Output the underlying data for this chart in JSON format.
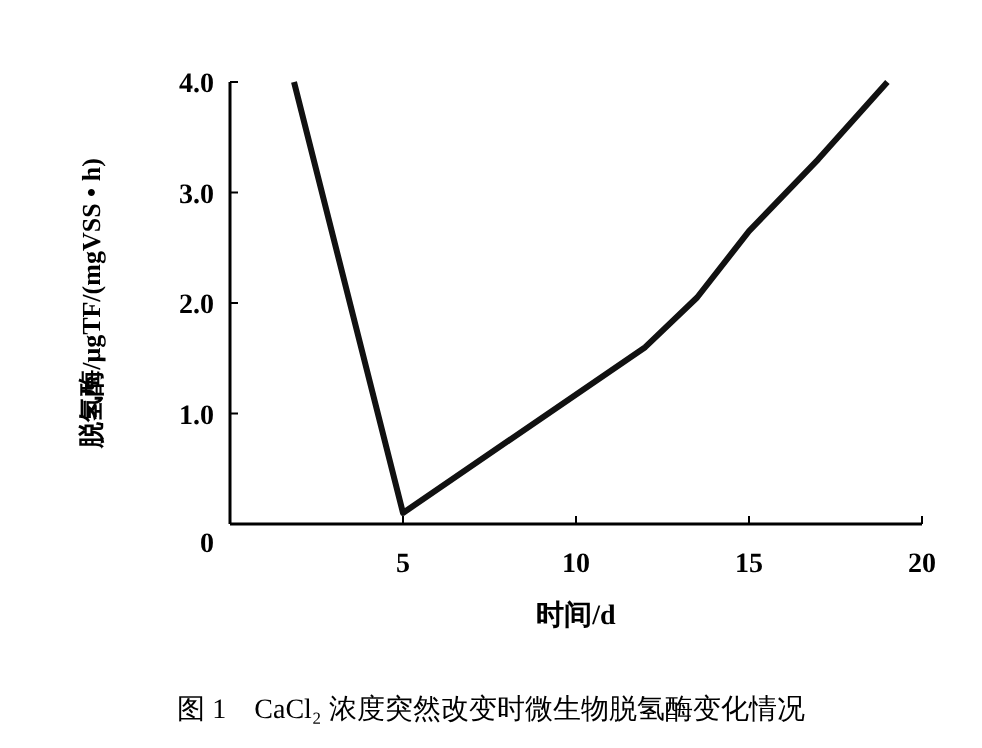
{
  "chart_data": {
    "type": "line",
    "title": "图 1　CaCl₂ 浓度突然改变时微生物脱氢酶变化情况",
    "xlabel": "时间/d",
    "ylabel": "脱氢酶/μgTF/(mgVSS • h)",
    "x": [
      1.85,
      5,
      12,
      13.5,
      15,
      17,
      19
    ],
    "series": [
      {
        "color": "#111111",
        "values": [
          4.0,
          0.1,
          1.6,
          2.05,
          2.65,
          3.3,
          4.0
        ]
      }
    ],
    "xlim": [
      0,
      20
    ],
    "xticks": [
      5,
      10,
      15,
      20
    ],
    "ylim": [
      0,
      4
    ],
    "yticks": [
      {
        "value": 0,
        "label": "0"
      },
      {
        "value": 1,
        "label": "1.0"
      },
      {
        "value": 2,
        "label": "2.0"
      },
      {
        "value": 3,
        "label": "3.0"
      },
      {
        "value": 4,
        "label": "4.0"
      }
    ],
    "grid": false,
    "marker": "none",
    "line_style": "solid"
  }
}
